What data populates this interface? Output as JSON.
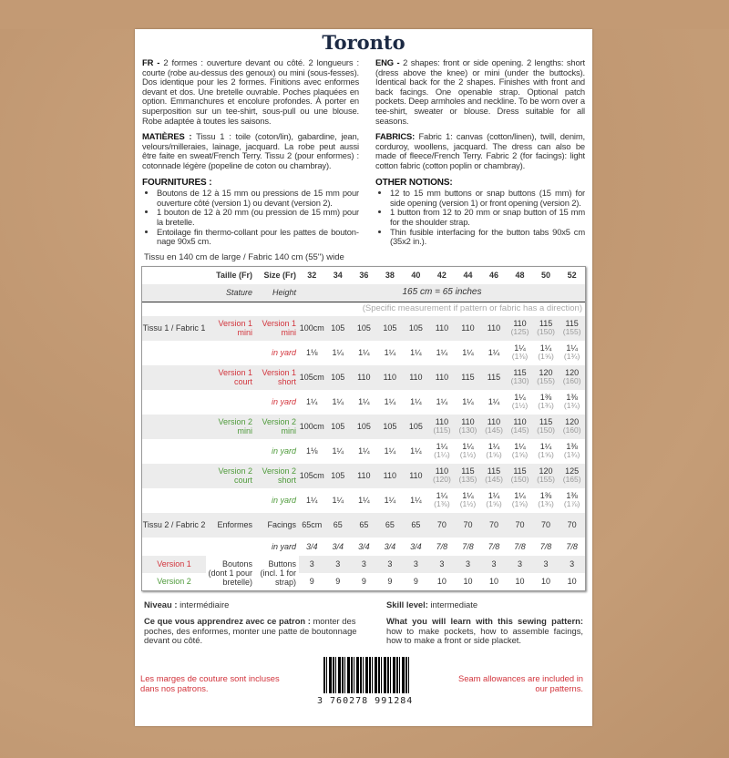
{
  "title": "Toronto",
  "fr": {
    "intro_label": "FR -",
    "intro": "2 formes : ouverture devant ou côté. 2 longueurs : courte (robe au-dessus des genoux) ou mini (sous-fesses). Dos identique pour les 2 formes. Finitions avec enformes devant et dos. Une bretelle ouvrable. Poches plaquées en option. Emmanchures et encolure profondes. À porter en superposition sur un tee-shirt, sous-pull ou une blouse. Robe adaptée à toutes les saisons.",
    "materials_label": "MATIÈRES :",
    "materials": "Tissu 1 : toile (coton/lin), gabardine, jean, velours/milleraies, lainage, jacquard. La robe peut aussi être faite en sweat/French Terry. Tissu 2 (pour enformes) : cotonnade légère (popeline de coton ou chambray).",
    "notions_label": "FOURNITURES :",
    "notions": [
      "Boutons de 12 à 15 mm ou pressions  de 15 mm pour ouverture côté (version 1) ou devant (version 2).",
      "1 bouton de 12 à 20 mm (ou pression de 15 mm) pour la bretelle.",
      "Entoilage fin thermo-collant pour les pattes de bouton­nage 90x5 cm."
    ],
    "level_label": "Niveau :",
    "level": "intermédiaire",
    "learn_label": "Ce que vous apprendrez avec ce patron :",
    "learn": "monter des poches, des enformes, monter une patte de bouton­nage devant ou côté.",
    "seam": "Les marges de couture sont incluses dans nos patrons."
  },
  "en": {
    "intro_label": "ENG -",
    "intro": "2 shapes: front or side opening. 2 lengths: short (dress above the knee) or mini (under the buttocks). Identical back for the 2 shapes. Finishes with front and back facings. One openable strap. Optional patch pockets. Deep armholes and neckline. To be worn over a tee-shirt, sweater or blouse. Dress suitable for all seasons.",
    "materials_label": "FABRICS:",
    "materials": "Fabric 1: canvas (cotton/linen), twill, denim, corduroy, woollens, jacquard. The dress can also be made of fleece/French Terry. Fabric 2 (for facings): light cotton fabric (cotton poplin or chambray).",
    "notions_label": "OTHER NOTIONS:",
    "notions": [
      "12 to 15 mm buttons or snap buttons (15 mm) for side opening (version 1) or front opening (version 2).",
      "1 button from 12 to 20 mm or snap button of 15 mm for the shoulder strap.",
      "Thin fusible interfacing for the button tabs 90x5 cm (35x2 in.)."
    ],
    "level_label": "Skill level:",
    "level": "intermediate",
    "learn_label": "What you will learn with this sewing pattern:",
    "learn": "how to make pockets, how to assemble facings, how to make a front or side placket.",
    "seam": "Seam allowances are included in our patterns."
  },
  "fabric_width": "Tissu en 140 cm de large / Fabric 140 cm (55'') wide",
  "table": {
    "h_taille": "Taille (Fr)",
    "h_size": "Size (Fr)",
    "sizes": [
      "32",
      "34",
      "36",
      "38",
      "40",
      "42",
      "44",
      "46",
      "48",
      "50",
      "52"
    ],
    "stature": "Stature",
    "height": "Height",
    "height_value": "165 cm = 65 inches",
    "note": "(Specific measurement if pattern or fabric has a direction)",
    "rows": [
      {
        "group": "Tissu 1 / Fabric 1",
        "fr": "Version 1 mini",
        "en": "Version 1 mini",
        "color": "red",
        "shade": true,
        "cells": [
          [
            "100cm"
          ],
          [
            "105"
          ],
          [
            "105"
          ],
          [
            "105"
          ],
          [
            "105"
          ],
          [
            "110"
          ],
          [
            "110"
          ],
          [
            "110"
          ],
          [
            "110",
            "(125)"
          ],
          [
            "115",
            "(150)"
          ],
          [
            "115",
            "(155)"
          ]
        ]
      },
      {
        "fr": "",
        "en": "in yard",
        "color": "red",
        "cells": [
          [
            "1⅛"
          ],
          [
            "1¼"
          ],
          [
            "1¼"
          ],
          [
            "1¼"
          ],
          [
            "1¼"
          ],
          [
            "1¼"
          ],
          [
            "1¼"
          ],
          [
            "1¼"
          ],
          [
            "1¼",
            "(1⅜)"
          ],
          [
            "1¼",
            "(1⅝)"
          ],
          [
            "1¼",
            "(1¾)"
          ]
        ]
      },
      {
        "fr": "Version 1 court",
        "en": "Version 1 short",
        "color": "red",
        "shade": true,
        "cells": [
          [
            "105cm"
          ],
          [
            "105"
          ],
          [
            "110"
          ],
          [
            "110"
          ],
          [
            "110"
          ],
          [
            "110"
          ],
          [
            "115"
          ],
          [
            "115"
          ],
          [
            "115",
            "(130)"
          ],
          [
            "120",
            "(155)"
          ],
          [
            "120",
            "(160)"
          ]
        ]
      },
      {
        "fr": "",
        "en": "in yard",
        "color": "red",
        "cells": [
          [
            "1¼"
          ],
          [
            "1¼"
          ],
          [
            "1¼"
          ],
          [
            "1¼"
          ],
          [
            "1¼"
          ],
          [
            "1¼"
          ],
          [
            "1¼"
          ],
          [
            "1¼"
          ],
          [
            "1¼",
            "(1½)"
          ],
          [
            "1⅜",
            "(1¾)"
          ],
          [
            "1⅜",
            "(1¾)"
          ]
        ]
      },
      {
        "fr": "Version 2 mini",
        "en": "Version 2 mini",
        "color": "grn",
        "shade": true,
        "cells": [
          [
            "100cm"
          ],
          [
            "105"
          ],
          [
            "105"
          ],
          [
            "105"
          ],
          [
            "105"
          ],
          [
            "110",
            "(115)"
          ],
          [
            "110",
            "(130)"
          ],
          [
            "110",
            "(145)"
          ],
          [
            "110",
            "(145)"
          ],
          [
            "115",
            "(150)"
          ],
          [
            "120",
            "(160)"
          ]
        ]
      },
      {
        "fr": "",
        "en": "in yard",
        "color": "grn",
        "cells": [
          [
            "1⅛"
          ],
          [
            "1¼"
          ],
          [
            "1¼"
          ],
          [
            "1¼"
          ],
          [
            "1¼"
          ],
          [
            "1¼",
            "(1¼)"
          ],
          [
            "1¼",
            "(1½)"
          ],
          [
            "1¼",
            "(1⅝)"
          ],
          [
            "1¼",
            "(1⅝)"
          ],
          [
            "1¼",
            "(1⅝)"
          ],
          [
            "1⅜",
            "(1¾)"
          ]
        ]
      },
      {
        "fr": "Version 2 court",
        "en": "Version 2 short",
        "color": "grn",
        "shade": true,
        "cells": [
          [
            "105cm"
          ],
          [
            "105"
          ],
          [
            "110"
          ],
          [
            "110"
          ],
          [
            "110"
          ],
          [
            "110",
            "(120)"
          ],
          [
            "115",
            "(135)"
          ],
          [
            "115",
            "(145)"
          ],
          [
            "115",
            "(150)"
          ],
          [
            "120",
            "(155)"
          ],
          [
            "125",
            "(165)"
          ]
        ]
      },
      {
        "fr": "",
        "en": "in yard",
        "color": "grn",
        "cells": [
          [
            "1¼"
          ],
          [
            "1¼"
          ],
          [
            "1¼"
          ],
          [
            "1¼"
          ],
          [
            "1¼"
          ],
          [
            "1¼",
            "(1⅜)"
          ],
          [
            "1¼",
            "(1½)"
          ],
          [
            "1¼",
            "(1⅝)"
          ],
          [
            "1¼",
            "(1⅝)"
          ],
          [
            "1⅜",
            "(1¾)"
          ],
          [
            "1⅜",
            "(1⅞)"
          ]
        ]
      },
      {
        "group": "Tissu 2 / Fabric 2",
        "fr": "Enformes",
        "en": "Facings",
        "color": "",
        "shade": true,
        "big": true,
        "cells": [
          [
            "65cm"
          ],
          [
            "65"
          ],
          [
            "65"
          ],
          [
            "65"
          ],
          [
            "65"
          ],
          [
            "70"
          ],
          [
            "70"
          ],
          [
            "70"
          ],
          [
            "70"
          ],
          [
            "70"
          ],
          [
            "70"
          ]
        ]
      },
      {
        "fr": "",
        "en": "in yard",
        "color": "",
        "italic": true,
        "cells": [
          [
            "3/4"
          ],
          [
            "3/4"
          ],
          [
            "3/4"
          ],
          [
            "3/4"
          ],
          [
            "3/4"
          ],
          [
            "7/8"
          ],
          [
            "7/8"
          ],
          [
            "7/8"
          ],
          [
            "7/8"
          ],
          [
            "7/8"
          ],
          [
            "7/8"
          ]
        ]
      }
    ],
    "buttons": {
      "fr": "Boutons (dont 1 pour bretelle)",
      "en": "Buttons (incl. 1 for strap)",
      "v1_label": "Version 1",
      "v1": [
        "3",
        "3",
        "3",
        "3",
        "3",
        "3",
        "3",
        "3",
        "3",
        "3",
        "3"
      ],
      "v2_label": "Version 2",
      "v2": [
        "9",
        "9",
        "9",
        "9",
        "9",
        "10",
        "10",
        "10",
        "10",
        "10",
        "10"
      ]
    }
  },
  "barcode": "3 760278 991284",
  "colors": {
    "red": "#d2343c",
    "green": "#4e9a3a",
    "title": "#1c2a44",
    "kraft": "#c39a74"
  }
}
